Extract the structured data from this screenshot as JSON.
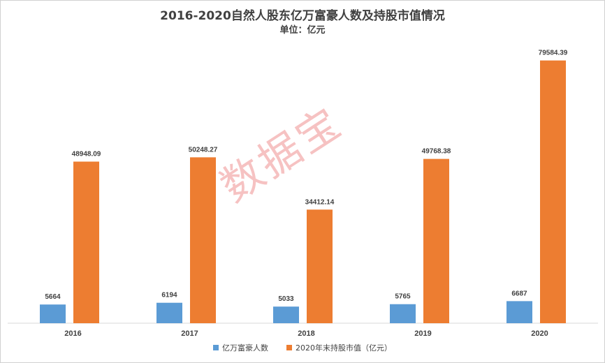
{
  "chart_data": {
    "type": "bar",
    "title": "2016-2020自然人股东亿万富豪人数及持股市值情况",
    "subtitle": "单位：亿元",
    "categories": [
      "2016",
      "2017",
      "2018",
      "2019",
      "2020"
    ],
    "series": [
      {
        "name": "亿万富豪人数",
        "color": "#5b9bd5",
        "values": [
          5664,
          6194,
          5033,
          5765,
          6687
        ],
        "labels": [
          "5664",
          "6194",
          "5033",
          "5765",
          "6687"
        ]
      },
      {
        "name": "2020年末持股市值（亿元）",
        "color": "#ed7d31",
        "values": [
          48948.09,
          50248.27,
          34412.14,
          49768.38,
          79584.39
        ],
        "labels": [
          "48948.09",
          "50248.27",
          "34412.14",
          "49768.38",
          "79584.39"
        ]
      }
    ],
    "ylim": [
      0,
      85000
    ],
    "grid": false,
    "legend": "bottom"
  },
  "watermark": "数据宝"
}
